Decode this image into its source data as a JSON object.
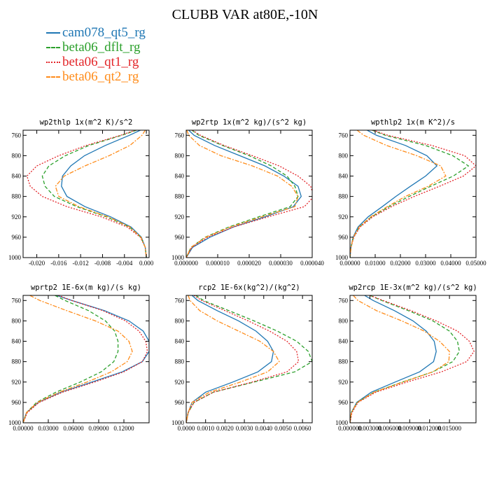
{
  "title": "CLUBB VAR at80E,-10N",
  "legend": [
    {
      "name": "cam078_qt5_rg",
      "color": "#1f77b4",
      "style": "solid"
    },
    {
      "name": "beta06_dflt_rg",
      "color": "#2ca02c",
      "style": "dashed"
    },
    {
      "name": "beta06_qt1_rg",
      "color": "#e3262a",
      "style": "dotted"
    },
    {
      "name": "beta06_qt2_rg",
      "color": "#ff8c1a",
      "style": "dashdot"
    }
  ],
  "chart_data": [
    {
      "type": "line",
      "title": "wp2thlp  1x(m^2 K)/s^2",
      "ylim": [
        1000,
        750
      ],
      "yticks": [
        760,
        800,
        840,
        880,
        920,
        960,
        1000
      ],
      "xlim": [
        -0.0225,
        0.0005
      ],
      "xticks": [
        -0.02,
        -0.016,
        -0.012,
        -0.008,
        -0.004,
        0.0
      ],
      "xtick_labels": [
        "-0.020",
        "-0.016",
        "-0.012",
        "-0.008",
        "-0.004",
        "0.000"
      ],
      "y": [
        750,
        760,
        780,
        800,
        820,
        840,
        860,
        880,
        900,
        920,
        940,
        960,
        980,
        1000
      ],
      "series": [
        {
          "name": "cam078_qt5_rg",
          "values": [
            -0.0011,
            -0.0031,
            -0.0075,
            -0.0113,
            -0.0138,
            -0.0153,
            -0.0155,
            -0.0145,
            -0.0112,
            -0.0065,
            -0.0028,
            -0.0009,
            -0.0002,
            0.0
          ]
        },
        {
          "name": "beta06_dflt_rg",
          "values": [
            -0.0018,
            -0.0045,
            -0.0105,
            -0.0148,
            -0.0178,
            -0.019,
            -0.0185,
            -0.0168,
            -0.0127,
            -0.0073,
            -0.0031,
            -0.001,
            -0.0002,
            0.0
          ]
        },
        {
          "name": "beta06_qt1_rg",
          "values": [
            -0.002,
            -0.0047,
            -0.011,
            -0.016,
            -0.02,
            -0.0218,
            -0.0212,
            -0.019,
            -0.0145,
            -0.0082,
            -0.0035,
            -0.0011,
            -0.0002,
            0.0
          ]
        },
        {
          "name": "beta06_qt2_rg",
          "values": [
            -0.0002,
            -0.0008,
            -0.003,
            -0.0068,
            -0.0112,
            -0.015,
            -0.0166,
            -0.016,
            -0.0123,
            -0.007,
            -0.003,
            -0.001,
            -0.0002,
            0.0
          ]
        }
      ]
    },
    {
      "type": "line",
      "title": "wp2rtp  1x(m^2 kg)/(s^2 kg)",
      "ylim": [
        1000,
        750
      ],
      "yticks": [
        760,
        800,
        840,
        880,
        920,
        960,
        1000
      ],
      "xlim": [
        0.0,
        4e-05
      ],
      "xticks": [
        0.0,
        1e-05,
        2e-05,
        3e-05,
        4e-05
      ],
      "xtick_labels": [
        "0.000000",
        "0.000010",
        "0.000020",
        "0.000030",
        "0.000040"
      ],
      "y": [
        750,
        760,
        780,
        800,
        820,
        840,
        860,
        880,
        900,
        920,
        940,
        960,
        980,
        1000
      ],
      "series": [
        {
          "name": "cam078_qt5_rg",
          "values": [
            8e-07,
            2.5e-06,
            9e-06,
            1.7e-05,
            2.5e-05,
            3.1e-05,
            3.55e-05,
            3.65e-05,
            3.4e-05,
            2.5e-05,
            1.5e-05,
            7.5e-06,
            2e-06,
            0.0
          ]
        },
        {
          "name": "beta06_dflt_rg",
          "values": [
            1.8e-06,
            4e-06,
            1.15e-05,
            2e-05,
            2.7e-05,
            3.2e-05,
            3.45e-05,
            3.55e-05,
            3.3e-05,
            2.3e-05,
            1.35e-05,
            6e-06,
            1.5e-06,
            0.0
          ]
        },
        {
          "name": "beta06_qt1_rg",
          "values": [
            2e-06,
            4.5e-06,
            1.2e-05,
            2.1e-05,
            2.95e-05,
            3.55e-05,
            3.95e-05,
            4.05e-05,
            3.75e-05,
            2.6e-05,
            1.5e-05,
            6.8e-06,
            1.8e-06,
            0.0
          ]
        },
        {
          "name": "beta06_qt2_rg",
          "values": [
            2e-07,
            8e-07,
            4.2e-06,
            1.1e-05,
            2.1e-05,
            2.9e-05,
            3.35e-05,
            3.55e-05,
            3.45e-05,
            2.4e-05,
            1.4e-05,
            6.2e-06,
            1.5e-06,
            0.0
          ]
        }
      ]
    },
    {
      "type": "line",
      "title": "wpthlp2  1x(m K^2)/s",
      "ylim": [
        1000,
        750
      ],
      "yticks": [
        760,
        800,
        840,
        880,
        920,
        960,
        1000
      ],
      "xlim": [
        0.0,
        0.05
      ],
      "xticks": [
        0.0,
        0.01,
        0.02,
        0.03,
        0.04,
        0.05
      ],
      "xtick_labels": [
        "0.00000",
        "0.01000",
        "0.02000",
        "0.03000",
        "0.04000",
        "0.05000"
      ],
      "y": [
        750,
        760,
        780,
        800,
        820,
        840,
        860,
        880,
        900,
        920,
        940,
        960,
        980,
        1000
      ],
      "series": [
        {
          "name": "cam078_qt5_rg",
          "values": [
            0.0068,
            0.0105,
            0.022,
            0.0305,
            0.0345,
            0.03,
            0.024,
            0.0182,
            0.0128,
            0.0072,
            0.0032,
            0.0012,
            0.0004,
            0.0
          ]
        },
        {
          "name": "beta06_dflt_rg",
          "values": [
            0.0088,
            0.014,
            0.03,
            0.0408,
            0.047,
            0.041,
            0.032,
            0.0235,
            0.0155,
            0.0085,
            0.0037,
            0.0014,
            0.0004,
            0.0
          ]
        },
        {
          "name": "beta06_qt1_rg",
          "values": [
            0.0092,
            0.015,
            0.0325,
            0.0455,
            0.05,
            0.045,
            0.0355,
            0.0255,
            0.0165,
            0.009,
            0.004,
            0.0015,
            0.0004,
            0.0
          ]
        },
        {
          "name": "beta06_qt2_rg",
          "values": [
            0.0028,
            0.0055,
            0.0145,
            0.0265,
            0.036,
            0.038,
            0.031,
            0.022,
            0.0148,
            0.0082,
            0.0036,
            0.0013,
            0.0004,
            0.0
          ]
        }
      ]
    },
    {
      "type": "line",
      "title": "wprtp2  1E-6x(m kg)/(s kg)",
      "ylim": [
        1000,
        750
      ],
      "yticks": [
        760,
        800,
        840,
        880,
        920,
        960,
        1000
      ],
      "xlim": [
        0.0,
        0.15
      ],
      "xticks": [
        0.0,
        0.03,
        0.06,
        0.09,
        0.12
      ],
      "xtick_labels": [
        "0.00000",
        "0.03000",
        "0.06000",
        "0.09000",
        "0.12000"
      ],
      "y": [
        750,
        760,
        780,
        800,
        820,
        840,
        860,
        880,
        900,
        920,
        940,
        960,
        980,
        1000
      ],
      "series": [
        {
          "name": "cam078_qt5_rg",
          "values": [
            0.04,
            0.058,
            0.097,
            0.126,
            0.143,
            0.15,
            0.15,
            0.142,
            0.118,
            0.082,
            0.045,
            0.018,
            0.004,
            0.0
          ]
        },
        {
          "name": "beta06_dflt_rg",
          "values": [
            0.038,
            0.05,
            0.078,
            0.098,
            0.109,
            0.113,
            0.113,
            0.108,
            0.093,
            0.068,
            0.039,
            0.016,
            0.004,
            0.0
          ]
        },
        {
          "name": "beta06_qt1_rg",
          "values": [
            0.042,
            0.058,
            0.095,
            0.122,
            0.138,
            0.146,
            0.148,
            0.142,
            0.12,
            0.085,
            0.047,
            0.019,
            0.005,
            0.0
          ]
        },
        {
          "name": "beta06_qt2_rg",
          "values": [
            0.008,
            0.02,
            0.052,
            0.086,
            0.113,
            0.126,
            0.13,
            0.124,
            0.105,
            0.076,
            0.043,
            0.017,
            0.004,
            0.0
          ]
        }
      ]
    },
    {
      "type": "line",
      "title": "rcp2  1E-6x(kg^2)/(kg^2)",
      "ylim": [
        1000,
        750
      ],
      "yticks": [
        760,
        800,
        840,
        880,
        920,
        960,
        1000
      ],
      "xlim": [
        0.0,
        0.0065
      ],
      "xticks": [
        0.0,
        0.001,
        0.002,
        0.003,
        0.004,
        0.005,
        0.006
      ],
      "xtick_labels": [
        "0.0000",
        "0.0010",
        "0.0020",
        "0.0030",
        "0.0040",
        "0.0050",
        "0.0060"
      ],
      "y": [
        750,
        760,
        780,
        800,
        820,
        840,
        860,
        880,
        900,
        920,
        940,
        960,
        980,
        1000
      ],
      "series": [
        {
          "name": "cam078_qt5_rg",
          "values": [
            0.0003,
            0.0006,
            0.0016,
            0.0027,
            0.0036,
            0.0042,
            0.0045,
            0.0044,
            0.0037,
            0.0024,
            0.001,
            0.0003,
            0.0001,
            0.0
          ]
        },
        {
          "name": "beta06_dflt_rg",
          "values": [
            0.0005,
            0.0009,
            0.0022,
            0.0035,
            0.0047,
            0.0057,
            0.0063,
            0.0065,
            0.0056,
            0.0035,
            0.0014,
            0.0004,
            0.0001,
            0.0
          ]
        },
        {
          "name": "beta06_qt1_rg",
          "values": [
            0.0004,
            0.0008,
            0.002,
            0.0032,
            0.0043,
            0.0052,
            0.0057,
            0.0058,
            0.0052,
            0.0034,
            0.0014,
            0.0004,
            0.0001,
            0.0
          ]
        },
        {
          "name": "beta06_qt2_rg",
          "values": [
            0.0001,
            0.0002,
            0.0007,
            0.0016,
            0.0027,
            0.0038,
            0.0045,
            0.0048,
            0.0042,
            0.0028,
            0.0012,
            0.0003,
            0.0001,
            0.0
          ]
        }
      ]
    },
    {
      "type": "line",
      "title": "wp2rcp  1E-3x(m^2 kg)/(s^2 kg)",
      "ylim": [
        1000,
        750
      ],
      "yticks": [
        760,
        800,
        840,
        880,
        920,
        960,
        1000
      ],
      "xlim": [
        0.0,
        0.019
      ],
      "xticks": [
        0.0,
        0.003,
        0.006,
        0.009,
        0.012,
        0.015
      ],
      "xtick_labels": [
        "0.000000",
        "0.003000",
        "0.006000",
        "0.009000",
        "0.012000",
        "0.015000"
      ],
      "y": [
        750,
        760,
        780,
        800,
        820,
        840,
        860,
        880,
        900,
        920,
        940,
        960,
        980,
        1000
      ],
      "series": [
        {
          "name": "cam078_qt5_rg",
          "values": [
            0.0022,
            0.0035,
            0.0067,
            0.0095,
            0.0115,
            0.0127,
            0.013,
            0.0126,
            0.0105,
            0.0068,
            0.0032,
            0.001,
            0.0002,
            0.0
          ]
        },
        {
          "name": "beta06_dflt_rg",
          "values": [
            0.003,
            0.0048,
            0.0088,
            0.0125,
            0.015,
            0.0162,
            0.0165,
            0.0155,
            0.0125,
            0.0079,
            0.0036,
            0.0011,
            0.0002,
            0.0
          ]
        },
        {
          "name": "beta06_qt1_rg",
          "values": [
            0.003,
            0.005,
            0.0092,
            0.013,
            0.0162,
            0.018,
            0.0187,
            0.0176,
            0.0138,
            0.0086,
            0.0039,
            0.0012,
            0.0003,
            0.0
          ]
        },
        {
          "name": "beta06_qt2_rg",
          "values": [
            0.0005,
            0.0012,
            0.004,
            0.0078,
            0.0112,
            0.0135,
            0.015,
            0.0149,
            0.0125,
            0.008,
            0.0036,
            0.0011,
            0.0002,
            0.0
          ]
        }
      ]
    }
  ]
}
